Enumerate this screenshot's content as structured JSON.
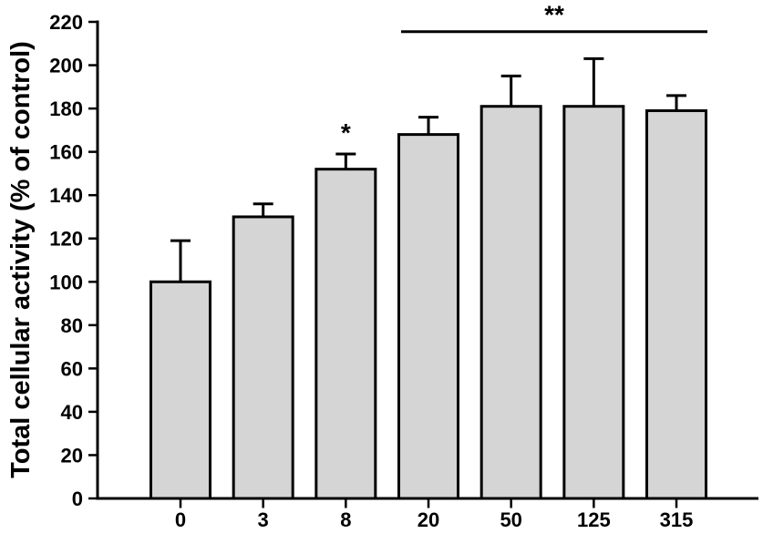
{
  "chart_data": {
    "type": "bar",
    "title": "",
    "xlabel": "",
    "ylabel": "Total cellular activity (% of control)",
    "categories": [
      "0",
      "3",
      "8",
      "20",
      "50",
      "125",
      "315"
    ],
    "values": [
      100,
      130,
      152,
      168,
      181,
      181,
      179
    ],
    "errors_plus": [
      19,
      6,
      7,
      8,
      14,
      22,
      7
    ],
    "ylim": [
      0,
      220
    ],
    "yticks": [
      0,
      20,
      40,
      60,
      80,
      100,
      120,
      140,
      160,
      180,
      200,
      220
    ],
    "grid": "off",
    "legend": "none",
    "bar_fill": "#d5d5d5",
    "bar_stroke": "#000000",
    "axis_color": "#000000",
    "annotations": [
      {
        "kind": "star",
        "text": "*",
        "category_index": 2
      },
      {
        "kind": "bracket",
        "text": "**",
        "from_index": 3,
        "to_index": 6,
        "y_value": 215.5
      }
    ]
  }
}
